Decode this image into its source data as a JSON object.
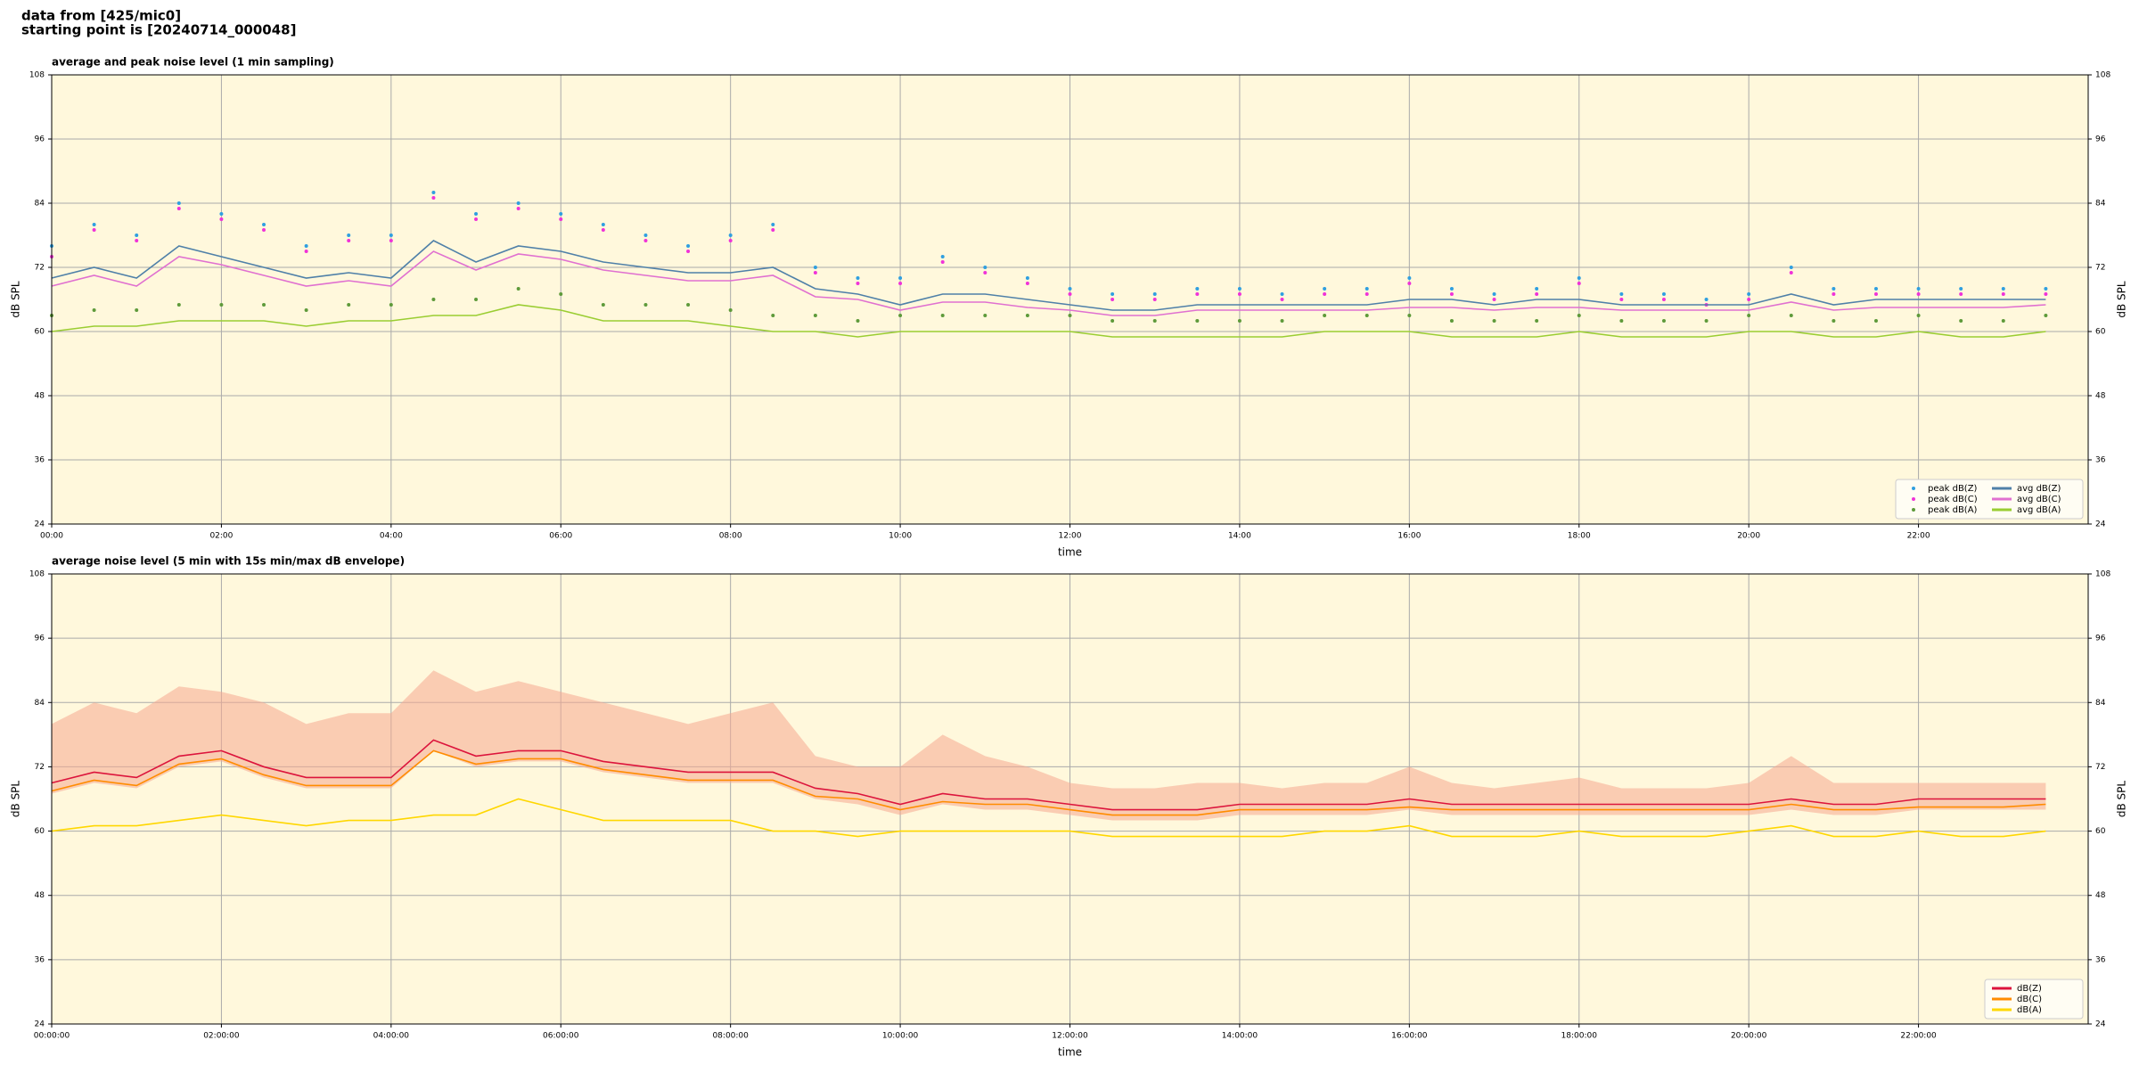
{
  "header": [
    "data from [425/mic0]",
    "starting point is [20240714_000048]"
  ],
  "chart_data": [
    {
      "type": "line",
      "title": "average and peak noise level (1 min sampling)",
      "xlabel": "time",
      "ylabel": "dB SPL",
      "x": [
        "00:00",
        "00:30",
        "01:00",
        "01:30",
        "02:00",
        "02:30",
        "03:00",
        "03:30",
        "04:00",
        "04:30",
        "05:00",
        "05:30",
        "06:00",
        "06:30",
        "07:00",
        "07:30",
        "08:00",
        "08:30",
        "09:00",
        "09:30",
        "10:00",
        "10:30",
        "11:00",
        "11:30",
        "12:00",
        "12:30",
        "13:00",
        "13:30",
        "14:00",
        "14:30",
        "15:00",
        "15:30",
        "16:00",
        "16:30",
        "17:00",
        "17:30",
        "18:00",
        "18:30",
        "19:00",
        "19:30",
        "20:00",
        "20:30",
        "21:00",
        "21:30",
        "22:00",
        "22:30",
        "23:00",
        "23:30"
      ],
      "xlim": [
        "00:00",
        "24:00"
      ],
      "xticks": [
        "00:00",
        "02:00",
        "04:00",
        "06:00",
        "08:00",
        "10:00",
        "12:00",
        "14:00",
        "16:00",
        "18:00",
        "20:00",
        "22:00"
      ],
      "ylim": [
        24,
        108
      ],
      "yticks": [
        24,
        36,
        48,
        60,
        72,
        84,
        96,
        108
      ],
      "grid": true,
      "legend": "lower right",
      "legend_columns": 2,
      "series": [
        {
          "name": "peak dB(Z)",
          "type": "scatter",
          "color": "#2f9fe0",
          "values": [
            76,
            80,
            78,
            84,
            82,
            80,
            76,
            78,
            78,
            86,
            82,
            84,
            82,
            80,
            78,
            76,
            78,
            80,
            72,
            70,
            70,
            74,
            72,
            70,
            68,
            67,
            67,
            68,
            68,
            67,
            68,
            68,
            70,
            68,
            67,
            68,
            70,
            67,
            67,
            66,
            67,
            72,
            68,
            68,
            68,
            68,
            68,
            68
          ]
        },
        {
          "name": "peak dB(C)",
          "type": "scatter",
          "color": "#f032d8",
          "values": [
            74,
            79,
            77,
            83,
            81,
            79,
            75,
            77,
            77,
            85,
            81,
            83,
            81,
            79,
            77,
            75,
            77,
            79,
            71,
            69,
            69,
            73,
            71,
            69,
            67,
            66,
            66,
            67,
            67,
            66,
            67,
            67,
            69,
            67,
            66,
            67,
            69,
            66,
            66,
            65,
            66,
            71,
            67,
            67,
            67,
            67,
            67,
            67
          ]
        },
        {
          "name": "peak dB(A)",
          "type": "scatter",
          "color": "#5e9a3a",
          "values": [
            63,
            64,
            64,
            65,
            65,
            65,
            64,
            65,
            65,
            66,
            66,
            68,
            67,
            65,
            65,
            65,
            64,
            63,
            63,
            62,
            63,
            63,
            63,
            63,
            63,
            62,
            62,
            62,
            62,
            62,
            63,
            63,
            63,
            62,
            62,
            62,
            63,
            62,
            62,
            62,
            63,
            63,
            62,
            62,
            63,
            62,
            62,
            63
          ]
        },
        {
          "name": "avg dB(Z)",
          "type": "line",
          "color": "#4f80a8",
          "values": [
            70,
            72,
            70,
            76,
            74,
            72,
            70,
            71,
            70,
            77,
            73,
            76,
            75,
            73,
            72,
            71,
            71,
            72,
            68,
            67,
            65,
            67,
            67,
            66,
            65,
            64,
            64,
            65,
            65,
            65,
            65,
            65,
            66,
            66,
            65,
            66,
            66,
            65,
            65,
            65,
            65,
            67,
            65,
            66,
            66,
            66,
            66,
            66
          ]
        },
        {
          "name": "avg dB(C)",
          "type": "line",
          "color": "#e070d0",
          "values": [
            68.5,
            70.5,
            68.5,
            74,
            72.5,
            70.5,
            68.5,
            69.5,
            68.5,
            75,
            71.5,
            74.5,
            73.5,
            71.5,
            70.5,
            69.5,
            69.5,
            70.5,
            66.5,
            66,
            64,
            65.5,
            65.5,
            64.5,
            64,
            63,
            63,
            64,
            64,
            64,
            64,
            64,
            64.5,
            64.5,
            64,
            64.5,
            64.5,
            64,
            64,
            64,
            64,
            65.5,
            64,
            64.5,
            64.5,
            64.5,
            64.5,
            65
          ]
        },
        {
          "name": "avg dB(A)",
          "type": "line",
          "color": "#9acd32",
          "values": [
            60,
            61,
            61,
            62,
            62,
            62,
            61,
            62,
            62,
            63,
            63,
            65,
            64,
            62,
            62,
            62,
            61,
            60,
            60,
            59,
            60,
            60,
            60,
            60,
            60,
            59,
            59,
            59,
            59,
            59,
            60,
            60,
            60,
            59,
            59,
            59,
            60,
            59,
            59,
            59,
            60,
            60,
            59,
            59,
            60,
            59,
            59,
            60
          ]
        }
      ]
    },
    {
      "type": "line",
      "title": "average noise level (5 min with 15s min/max dB envelope)",
      "xlabel": "time",
      "ylabel": "dB SPL",
      "x": [
        "00:00:00",
        "00:30:00",
        "01:00:00",
        "01:30:00",
        "02:00:00",
        "02:30:00",
        "03:00:00",
        "03:30:00",
        "04:00:00",
        "04:30:00",
        "05:00:00",
        "05:30:00",
        "06:00:00",
        "06:30:00",
        "07:00:00",
        "07:30:00",
        "08:00:00",
        "08:30:00",
        "09:00:00",
        "09:30:00",
        "10:00:00",
        "10:30:00",
        "11:00:00",
        "11:30:00",
        "12:00:00",
        "12:30:00",
        "13:00:00",
        "13:30:00",
        "14:00:00",
        "14:30:00",
        "15:00:00",
        "15:30:00",
        "16:00:00",
        "16:30:00",
        "17:00:00",
        "17:30:00",
        "18:00:00",
        "18:30:00",
        "19:00:00",
        "19:30:00",
        "20:00:00",
        "20:30:00",
        "21:00:00",
        "21:30:00",
        "22:00:00",
        "22:30:00",
        "23:00:00",
        "23:30:00"
      ],
      "xlim": [
        "00:00:00",
        "24:00:00"
      ],
      "xticks": [
        "00:00:00",
        "02:00:00",
        "04:00:00",
        "06:00:00",
        "08:00:00",
        "10:00:00",
        "12:00:00",
        "14:00:00",
        "16:00:00",
        "18:00:00",
        "20:00:00",
        "22:00:00"
      ],
      "ylim": [
        24,
        108
      ],
      "yticks": [
        24,
        36,
        48,
        60,
        72,
        84,
        96,
        108
      ],
      "grid": true,
      "legend": "lower right",
      "legend_columns": 1,
      "envelope_color": "#f5a890",
      "series": [
        {
          "name": "dB(Z)",
          "type": "line",
          "color": "#dc143c",
          "values": [
            69,
            71,
            70,
            74,
            75,
            72,
            70,
            70,
            70,
            77,
            74,
            75,
            75,
            73,
            72,
            71,
            71,
            71,
            68,
            67,
            65,
            67,
            66,
            66,
            65,
            64,
            64,
            64,
            65,
            65,
            65,
            65,
            66,
            65,
            65,
            65,
            65,
            65,
            65,
            65,
            65,
            66,
            65,
            65,
            66,
            66,
            66,
            66
          ],
          "min": [
            67,
            69,
            68,
            72,
            73,
            70,
            68,
            68,
            68,
            75,
            72,
            73,
            73,
            71,
            70,
            69,
            69,
            69,
            66,
            65,
            63,
            65,
            64,
            64,
            63,
            62,
            62,
            62,
            63,
            63,
            63,
            63,
            64,
            63,
            63,
            63,
            63,
            63,
            63,
            63,
            63,
            64,
            63,
            63,
            64,
            64,
            64,
            64
          ],
          "max": [
            80,
            84,
            82,
            87,
            86,
            84,
            80,
            82,
            82,
            90,
            86,
            88,
            86,
            84,
            82,
            80,
            82,
            84,
            74,
            72,
            72,
            78,
            74,
            72,
            69,
            68,
            68,
            69,
            69,
            68,
            69,
            69,
            72,
            69,
            68,
            69,
            70,
            68,
            68,
            68,
            69,
            74,
            69,
            69,
            69,
            69,
            69,
            69
          ]
        },
        {
          "name": "dB(C)",
          "type": "line",
          "color": "#ff8c00",
          "values": [
            67.5,
            69.5,
            68.5,
            72.5,
            73.5,
            70.5,
            68.5,
            68.5,
            68.5,
            75,
            72.5,
            73.5,
            73.5,
            71.5,
            70.5,
            69.5,
            69.5,
            69.5,
            66.5,
            66,
            64,
            65.5,
            65,
            65,
            64,
            63,
            63,
            63,
            64,
            64,
            64,
            64,
            64.5,
            64,
            64,
            64,
            64,
            64,
            64,
            64,
            64,
            65,
            64,
            64,
            64.5,
            64.5,
            64.5,
            65
          ]
        },
        {
          "name": "dB(A)",
          "type": "line",
          "color": "#ffd700",
          "values": [
            60,
            61,
            61,
            62,
            63,
            62,
            61,
            62,
            62,
            63,
            63,
            66,
            64,
            62,
            62,
            62,
            62,
            60,
            60,
            59,
            60,
            60,
            60,
            60,
            60,
            59,
            59,
            59,
            59,
            59,
            60,
            60,
            61,
            59,
            59,
            59,
            60,
            59,
            59,
            59,
            60,
            61,
            59,
            59,
            60,
            59,
            59,
            60
          ]
        }
      ]
    }
  ]
}
